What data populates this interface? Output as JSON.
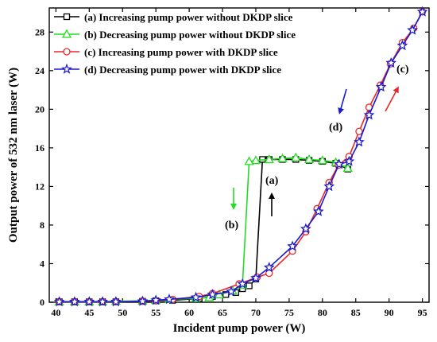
{
  "chart_data": {
    "type": "line",
    "xlabel": "Incident pump power (W)",
    "ylabel": "Output power of 532 nm laser (W)",
    "xlim": [
      39,
      96
    ],
    "ylim": [
      0,
      30.5
    ],
    "x_ticks": [
      40,
      45,
      50,
      55,
      60,
      65,
      70,
      75,
      80,
      85,
      90,
      95
    ],
    "y_ticks": [
      0,
      4,
      8,
      12,
      16,
      20,
      24,
      28
    ],
    "grid": false,
    "legend_position": "top-left",
    "series": [
      {
        "name": "(a) Increasing pump power without DKDP slice",
        "color": "#000000",
        "marker": "square",
        "points": [
          [
            40.5,
            0.05
          ],
          [
            42.8,
            0.05
          ],
          [
            45,
            0.05
          ],
          [
            47,
            0.05
          ],
          [
            49,
            0.05
          ],
          [
            53,
            0.1
          ],
          [
            55,
            0.15
          ],
          [
            57.5,
            0.2
          ],
          [
            61.5,
            0.4
          ],
          [
            63.5,
            0.6
          ],
          [
            65.5,
            0.8
          ],
          [
            67,
            1.0
          ],
          [
            68,
            1.4
          ],
          [
            69,
            1.7
          ],
          [
            70,
            2.4
          ],
          [
            71,
            14.8
          ],
          [
            72,
            14.8
          ],
          [
            74,
            14.8
          ],
          [
            76,
            14.8
          ],
          [
            78,
            14.7
          ],
          [
            80,
            14.6
          ],
          [
            82,
            14.4
          ],
          [
            83.8,
            13.8
          ]
        ]
      },
      {
        "name": "(b) Decreasing pump power without DKDP slice",
        "color": "#22dd22",
        "marker": "triangle",
        "points": [
          [
            83.8,
            13.9
          ],
          [
            82,
            14.5
          ],
          [
            80,
            14.7
          ],
          [
            78,
            14.8
          ],
          [
            76,
            15.0
          ],
          [
            74,
            14.9
          ],
          [
            72,
            14.8
          ],
          [
            70,
            14.7
          ],
          [
            69,
            14.6
          ],
          [
            68,
            1.8
          ],
          [
            66.5,
            1.2
          ],
          [
            64.5,
            0.8
          ],
          [
            63,
            0.5
          ],
          [
            61,
            0.4
          ],
          [
            57,
            0.3
          ],
          [
            55,
            0.2
          ],
          [
            53,
            0.15
          ],
          [
            49,
            0.1
          ],
          [
            47,
            0.05
          ],
          [
            45,
            0.05
          ],
          [
            42.8,
            0.05
          ],
          [
            40.5,
            0.05
          ]
        ]
      },
      {
        "name": "(c) Increasing pump power with DKDP slice",
        "color": "#e8282a",
        "marker": "circle",
        "points": [
          [
            40.5,
            0.05
          ],
          [
            42.8,
            0.05
          ],
          [
            45,
            0.05
          ],
          [
            47,
            0.05
          ],
          [
            49,
            0.05
          ],
          [
            53,
            0.1
          ],
          [
            55,
            0.15
          ],
          [
            57.5,
            0.3
          ],
          [
            61.5,
            0.6
          ],
          [
            63.5,
            0.9
          ],
          [
            67.5,
            1.9
          ],
          [
            70.2,
            2.6
          ],
          [
            72,
            3.0
          ],
          [
            75.5,
            5.3
          ],
          [
            77.5,
            7.3
          ],
          [
            79.2,
            9.7
          ],
          [
            81,
            12.4
          ],
          [
            82.4,
            14.2
          ],
          [
            84,
            15.1
          ],
          [
            85.5,
            17.7
          ],
          [
            87,
            20.2
          ],
          [
            88.7,
            22.5
          ],
          [
            90.2,
            24.7
          ],
          [
            92,
            26.9
          ],
          [
            93.7,
            28.4
          ],
          [
            95,
            30.1
          ]
        ]
      },
      {
        "name": "(d) Decreasing pump power with DKDP slice",
        "color": "#1a1acc",
        "marker": "star",
        "points": [
          [
            95,
            30.1
          ],
          [
            93.5,
            28.2
          ],
          [
            92,
            26.6
          ],
          [
            90.3,
            24.8
          ],
          [
            88.8,
            22.3
          ],
          [
            87,
            19.4
          ],
          [
            85.5,
            16.6
          ],
          [
            84,
            14.6
          ],
          [
            82.5,
            14.3
          ],
          [
            81,
            12.0
          ],
          [
            79.4,
            9.4
          ],
          [
            77.5,
            7.6
          ],
          [
            75.5,
            5.8
          ],
          [
            72,
            3.6
          ],
          [
            70,
            2.5
          ],
          [
            68,
            1.9
          ],
          [
            66.3,
            1.1
          ],
          [
            63.5,
            0.8
          ],
          [
            61,
            0.5
          ],
          [
            57,
            0.3
          ],
          [
            55,
            0.2
          ],
          [
            53,
            0.1
          ],
          [
            49,
            0.05
          ],
          [
            47,
            0.05
          ],
          [
            45,
            0.05
          ],
          [
            42.8,
            0.05
          ],
          [
            40.5,
            0.05
          ]
        ]
      }
    ],
    "annotations": [
      {
        "label": "(a)",
        "arrow": "up",
        "color": "#000000"
      },
      {
        "label": "(b)",
        "arrow": "down",
        "color": "#22dd22"
      },
      {
        "label": "(c)",
        "arrow": "up-right",
        "color": "#e8282a"
      },
      {
        "label": "(d)",
        "arrow": "down-left",
        "color": "#1a1acc"
      }
    ]
  }
}
